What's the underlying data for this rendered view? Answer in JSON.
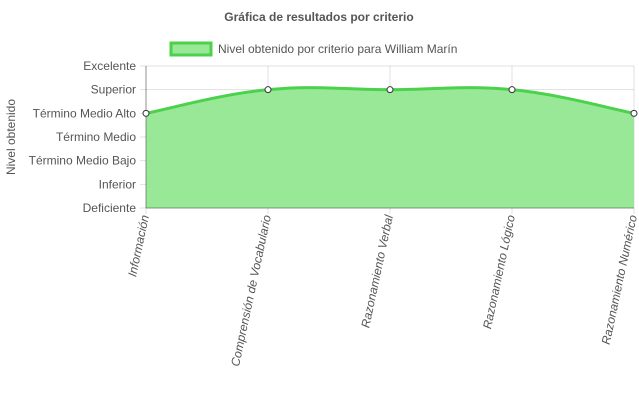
{
  "chart_data": {
    "type": "area",
    "title": "Gráfica de resultados por criterio",
    "xlabel": "",
    "ylabel": "Nivel obtenido",
    "categories": [
      "Información",
      "Comprensión de Vocabulario",
      "Razonamiento Verbal",
      "Razonamiento Lógico",
      "Razonamiento Numérico"
    ],
    "y_levels": [
      "Deficiente",
      "Inferior",
      "Término Medio Bajo",
      "Término Medio",
      "Término Medio Alto",
      "Superior",
      "Excelente"
    ],
    "ylim": [
      0,
      6
    ],
    "series": [
      {
        "name": "Nivel obtenido por criterio para William Marín",
        "values": [
          4,
          5,
          5,
          5,
          4
        ],
        "line_color": "#4cd14c",
        "fill_color": "#98e898",
        "point_fill": "#ffffff",
        "point_stroke": "#333333"
      }
    ],
    "grid": true,
    "legend_position": "top"
  }
}
